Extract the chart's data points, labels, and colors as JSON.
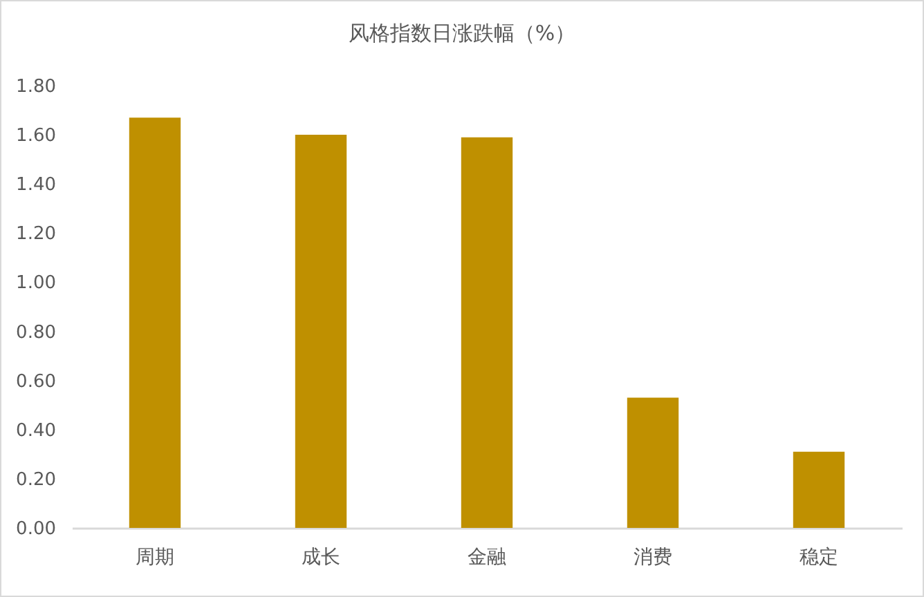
{
  "chart_data": {
    "type": "bar",
    "title": "风格指数日涨跌幅（%）",
    "categories": [
      "周期",
      "成长",
      "金融",
      "消费",
      "稳定"
    ],
    "values": [
      1.67,
      1.6,
      1.59,
      0.53,
      0.31
    ],
    "color": "#bf9000",
    "ylim": [
      0,
      1.8
    ],
    "yticks": [
      {
        "value": 0,
        "label": "0.00"
      },
      {
        "value": 0.2,
        "label": "0.20"
      },
      {
        "value": 0.4,
        "label": "0.40"
      },
      {
        "value": 0.6,
        "label": "0.60"
      },
      {
        "value": 0.8,
        "label": "0.80"
      },
      {
        "value": 1,
        "label": "1.00"
      },
      {
        "value": 1.2,
        "label": "1.20"
      },
      {
        "value": 1.4,
        "label": "1.40"
      },
      {
        "value": 1.6,
        "label": "1.60"
      },
      {
        "value": 1.8,
        "label": "1.80"
      }
    ],
    "grid": false
  }
}
